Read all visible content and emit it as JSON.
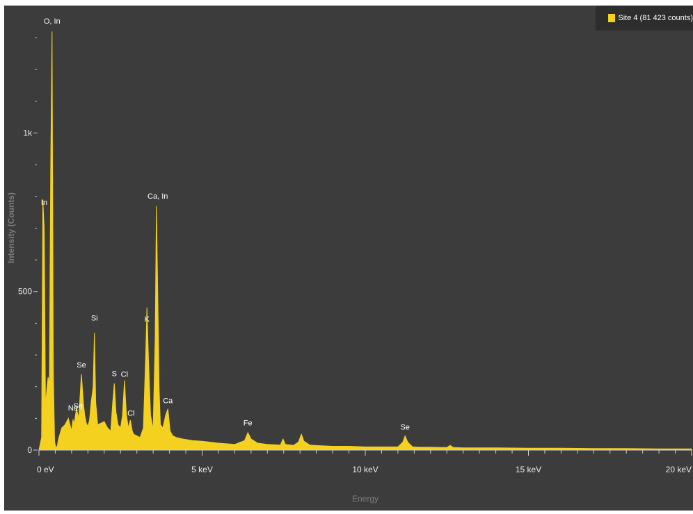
{
  "chart_data": {
    "type": "area",
    "title": "",
    "xlabel": "Energy",
    "ylabel": "Intensity (Counts)",
    "xlim": [
      0,
      20
    ],
    "ylim": [
      0,
      1380
    ],
    "x_ticks": [
      {
        "value": 0,
        "label": "0 eV"
      },
      {
        "value": 5,
        "label": "5 keV"
      },
      {
        "value": 10,
        "label": "10 keV"
      },
      {
        "value": 15,
        "label": "15 keV"
      },
      {
        "value": 20,
        "label": "20 keV"
      }
    ],
    "y_ticks": [
      {
        "value": 0,
        "label": "0"
      },
      {
        "value": 500,
        "label": "500"
      },
      {
        "value": 1000,
        "label": "1k"
      }
    ],
    "y_minor_ticks": [
      100,
      200,
      300,
      400,
      600,
      700,
      800,
      900,
      1100,
      1200,
      1300
    ],
    "legend": "top-right",
    "grid": false,
    "series": [
      {
        "name": "Site 4 (81 423 counts)",
        "color": "#f4d11e",
        "x": [
          0.0,
          0.08,
          0.12,
          0.16,
          0.2,
          0.24,
          0.28,
          0.32,
          0.36,
          0.4,
          0.44,
          0.48,
          0.52,
          0.56,
          0.6,
          0.7,
          0.8,
          0.9,
          1.0,
          1.04,
          1.08,
          1.15,
          1.22,
          1.3,
          1.36,
          1.4,
          1.45,
          1.5,
          1.55,
          1.6,
          1.66,
          1.7,
          1.74,
          1.8,
          1.9,
          2.0,
          2.1,
          2.2,
          2.26,
          2.31,
          2.36,
          2.42,
          2.5,
          2.56,
          2.62,
          2.68,
          2.74,
          2.8,
          2.86,
          2.9,
          3.0,
          3.1,
          3.2,
          3.27,
          3.31,
          3.36,
          3.42,
          3.5,
          3.56,
          3.6,
          3.64,
          3.68,
          3.72,
          3.8,
          3.88,
          3.95,
          4.02,
          4.1,
          4.2,
          4.4,
          4.7,
          5.0,
          5.5,
          6.0,
          6.3,
          6.4,
          6.5,
          6.7,
          7.0,
          7.4,
          7.48,
          7.55,
          7.8,
          7.95,
          8.04,
          8.12,
          8.3,
          8.6,
          9.0,
          9.5,
          10.0,
          10.5,
          11.0,
          11.15,
          11.22,
          11.3,
          11.45,
          11.7,
          12.0,
          12.5,
          12.6,
          12.7,
          13.0,
          14.0,
          15.0,
          16.0,
          17.0,
          18.0,
          19.0,
          20.0
        ],
        "values": [
          0,
          40,
          790,
          700,
          140,
          190,
          230,
          210,
          900,
          1320,
          250,
          25,
          8,
          12,
          35,
          70,
          80,
          100,
          60,
          95,
          85,
          130,
          100,
          240,
          150,
          110,
          85,
          75,
          95,
          150,
          200,
          370,
          150,
          80,
          85,
          90,
          70,
          60,
          150,
          210,
          120,
          80,
          70,
          110,
          220,
          110,
          70,
          95,
          60,
          50,
          45,
          40,
          70,
          300,
          450,
          270,
          110,
          65,
          350,
          770,
          500,
          200,
          80,
          70,
          110,
          130,
          60,
          45,
          40,
          35,
          30,
          28,
          22,
          18,
          30,
          55,
          35,
          22,
          18,
          16,
          35,
          18,
          15,
          25,
          50,
          28,
          16,
          14,
          12,
          12,
          10,
          10,
          10,
          25,
          45,
          25,
          10,
          9,
          9,
          8,
          15,
          8,
          7,
          7,
          6,
          6,
          5,
          5,
          4,
          4
        ]
      }
    ],
    "peak_labels": [
      {
        "text": "O, In",
        "x": 0.4,
        "y": 1332
      },
      {
        "text": "In",
        "x": 0.16,
        "y": 760
      },
      {
        "text": "Ca, In",
        "x": 3.64,
        "y": 780
      },
      {
        "text": "Si",
        "x": 1.7,
        "y": 395
      },
      {
        "text": "K",
        "x": 3.31,
        "y": 392
      },
      {
        "text": "Se",
        "x": 1.3,
        "y": 248
      },
      {
        "text": "S",
        "x": 2.31,
        "y": 220
      },
      {
        "text": "Cl",
        "x": 2.62,
        "y": 218
      },
      {
        "text": "Ca",
        "x": 3.95,
        "y": 135
      },
      {
        "text": "Na",
        "x": 1.04,
        "y": 112
      },
      {
        "text": "Se",
        "x": 1.2,
        "y": 118
      },
      {
        "text": "Cl",
        "x": 2.82,
        "y": 95
      },
      {
        "text": "Fe",
        "x": 6.4,
        "y": 65
      },
      {
        "text": "Se",
        "x": 11.22,
        "y": 52
      }
    ]
  }
}
